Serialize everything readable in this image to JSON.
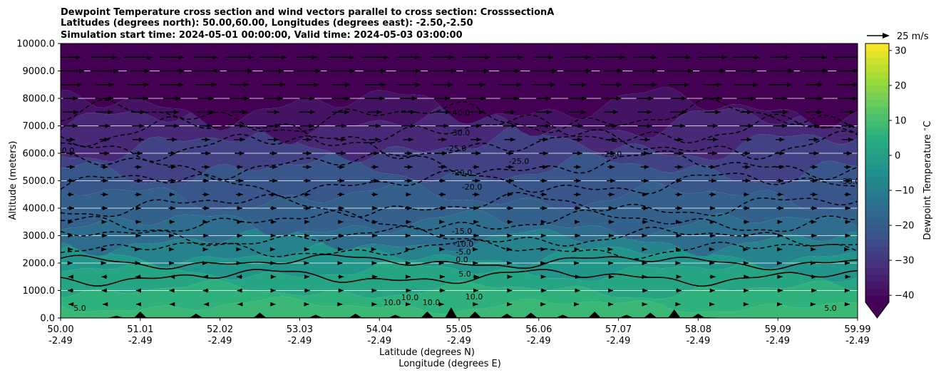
{
  "chart_data": {
    "type": "contour",
    "title_lines": [
      "Dewpoint Temperature cross section and wind vectors parallel to cross section: CrosssectionA",
      "Latitudes (degrees north): 50.00,60.00, Longitudes (degrees east): -2.50,-2.50",
      "Simulation start time: 2024-05-01 00:00:00, Valid time: 2024-05-03 03:00:00"
    ],
    "ylabel": "Altitude (meters)",
    "xlabel": "Latitude (degrees N)",
    "xlabel2": "Longitude (degrees E)",
    "ylim": [
      0,
      10000
    ],
    "xlim": [
      50.0,
      59.99
    ],
    "yticks": [
      "0.0",
      "1000.0",
      "2000.0",
      "3000.0",
      "4000.0",
      "5000.0",
      "6000.0",
      "7000.0",
      "8000.0",
      "9000.0",
      "10000.0"
    ],
    "xticks_lat": [
      "50.00",
      "51.01",
      "52.02",
      "53.03",
      "54.04",
      "55.05",
      "56.06",
      "57.07",
      "58.08",
      "59.09",
      "59.99"
    ],
    "xticks_lon": [
      "-2.49",
      "-2.49",
      "-2.49",
      "-2.49",
      "-2.49",
      "-2.49",
      "-2.49",
      "-2.49",
      "-2.49",
      "-2.49",
      "-2.49"
    ],
    "grid": true,
    "colorbar": {
      "label": "Dewpoint Temperature $^\\circ$C",
      "ticks": [
        "30",
        "20",
        "10",
        "0",
        "−10",
        "−20",
        "−30",
        "−40"
      ],
      "range": [
        -42,
        32
      ],
      "colormap": "viridis",
      "extend": "min"
    },
    "quiver_key": {
      "label": "25 m/s"
    },
    "contour_labels": [
      "-40.0",
      "-30.0",
      "-25.0",
      "-20.0",
      "-20.0",
      "-15.0",
      "-10.0",
      "-5.0",
      "0.0",
      "5.0",
      "10.0",
      "-25.0",
      "-25.0",
      "-30.0",
      "-30.0",
      "5.0",
      "5.0",
      "10.0",
      "10.0",
      "10.0"
    ],
    "bands": [
      {
        "z_top": 450,
        "value": 8
      },
      {
        "z_top": 1000,
        "value": 6
      },
      {
        "z_top": 1700,
        "value": 2
      },
      {
        "z_top": 2300,
        "value": -3
      },
      {
        "z_top": 2800,
        "value": -9
      },
      {
        "z_top": 3400,
        "value": -15
      },
      {
        "z_top": 4400,
        "value": -19
      },
      {
        "z_top": 5400,
        "value": -22
      },
      {
        "z_top": 6300,
        "value": -27
      },
      {
        "z_top": 7100,
        "value": -33
      },
      {
        "z_top": 7700,
        "value": -38
      },
      {
        "z_top": 10000,
        "value": -43
      }
    ]
  }
}
